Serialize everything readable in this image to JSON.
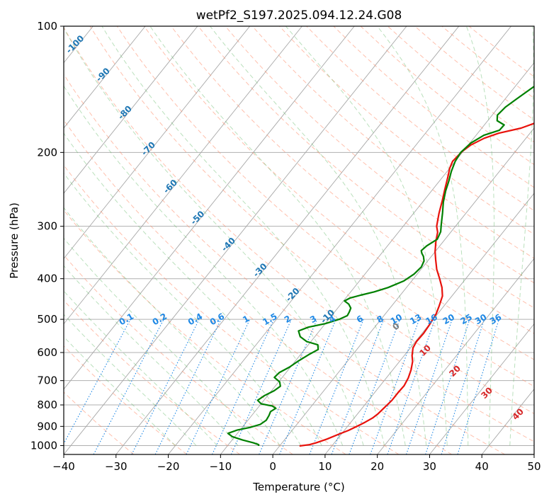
{
  "chart_data": {
    "type": "line",
    "title": "wetPf2_S197.2025.094.12.24.G08",
    "xlabel": "Temperature (°C)",
    "ylabel": "Pressure (hPa)",
    "xlim": [
      -40,
      50
    ],
    "ylim": [
      1050,
      100
    ],
    "y_scale": "log",
    "grid": true,
    "x_ticks": [
      "−40",
      "−30",
      "−20",
      "−10",
      "0",
      "10",
      "20",
      "30",
      "40",
      "50"
    ],
    "y_ticks": [
      "100",
      "200",
      "300",
      "400",
      "500",
      "600",
      "700",
      "800",
      "900",
      "1000"
    ],
    "series": [
      {
        "color": "#e8120c",
        "points": [
          [
            3.8,
            1002
          ],
          [
            5.5,
            995
          ],
          [
            6.5,
            985
          ],
          [
            8,
            965
          ],
          [
            9.5,
            940
          ],
          [
            10.8,
            920
          ],
          [
            11.8,
            900
          ],
          [
            12.7,
            880
          ],
          [
            13.5,
            860
          ],
          [
            13.9,
            840
          ],
          [
            14.2,
            810
          ],
          [
            14.5,
            780
          ],
          [
            14.5,
            750
          ],
          [
            14.6,
            720
          ],
          [
            14.2,
            690
          ],
          [
            13.5,
            660
          ],
          [
            12.5,
            630
          ],
          [
            11.5,
            610
          ],
          [
            10.5,
            585
          ],
          [
            10.2,
            565
          ],
          [
            10.3,
            540
          ],
          [
            10.1,
            515
          ],
          [
            9.7,
            485
          ],
          [
            9.1,
            465
          ],
          [
            8.2,
            440
          ],
          [
            6.8,
            420
          ],
          [
            5,
            400
          ],
          [
            3,
            380
          ],
          [
            1.3,
            360
          ],
          [
            0,
            345
          ],
          [
            -1.5,
            325
          ],
          [
            -2.5,
            310
          ],
          [
            -3.6,
            300
          ],
          [
            -5.1,
            280
          ],
          [
            -6.5,
            260
          ],
          [
            -7.7,
            245
          ],
          [
            -9,
            229
          ],
          [
            -10,
            218
          ],
          [
            -10.5,
            210
          ],
          [
            -10.2,
            199
          ],
          [
            -9.5,
            192
          ],
          [
            -8,
            185
          ],
          [
            -6,
            180
          ],
          [
            -2.5,
            175
          ],
          [
            -0.5,
            170
          ],
          [
            1,
            165
          ],
          [
            2.3,
            160
          ],
          [
            3.8,
            153
          ],
          [
            5,
            148
          ],
          [
            6.5,
            142
          ],
          [
            8,
            136
          ],
          [
            9.5,
            132
          ],
          [
            10.7,
            127
          ],
          [
            11.4,
            123
          ],
          [
            12.3,
            118
          ],
          [
            13.5,
            114
          ],
          [
            15,
            111
          ],
          [
            16.5,
            108
          ],
          [
            18.5,
            105
          ],
          [
            20,
            103
          ],
          [
            20.8,
            100
          ]
        ]
      },
      {
        "color": "#008000",
        "points": [
          [
            -4,
            1002
          ],
          [
            -4.2,
            995
          ],
          [
            -5.5,
            985
          ],
          [
            -8,
            970
          ],
          [
            -10.5,
            952
          ],
          [
            -11.8,
            935
          ],
          [
            -10.5,
            918
          ],
          [
            -8.5,
            905
          ],
          [
            -7,
            890
          ],
          [
            -6.5,
            870
          ],
          [
            -6.7,
            848
          ],
          [
            -7,
            830
          ],
          [
            -6.5,
            815
          ],
          [
            -7.5,
            805
          ],
          [
            -10,
            795
          ],
          [
            -11.2,
            780
          ],
          [
            -10.6,
            760
          ],
          [
            -9.5,
            740
          ],
          [
            -9,
            722
          ],
          [
            -9.8,
            705
          ],
          [
            -11.5,
            688
          ],
          [
            -11.3,
            670
          ],
          [
            -10.2,
            650
          ],
          [
            -9.5,
            630
          ],
          [
            -8.3,
            605
          ],
          [
            -7.4,
            590
          ],
          [
            -8.2,
            575
          ],
          [
            -10.8,
            565
          ],
          [
            -12.8,
            550
          ],
          [
            -14,
            533
          ],
          [
            -12.7,
            522
          ],
          [
            -10,
            512
          ],
          [
            -8,
            500
          ],
          [
            -7,
            490
          ],
          [
            -7.2,
            480
          ],
          [
            -7.5,
            470
          ],
          [
            -8.5,
            460
          ],
          [
            -9.8,
            452
          ],
          [
            -9.2,
            445
          ],
          [
            -7.6,
            438
          ],
          [
            -5.5,
            430
          ],
          [
            -3.5,
            420
          ],
          [
            -1.5,
            405
          ],
          [
            -0.6,
            390
          ],
          [
            -0.3,
            375
          ],
          [
            -0.7,
            363
          ],
          [
            -1.5,
            354
          ],
          [
            -2.3,
            348
          ],
          [
            -2.8,
            343
          ],
          [
            -2.5,
            334
          ],
          [
            -1.5,
            322
          ],
          [
            -2,
            309
          ],
          [
            -3,
            297
          ],
          [
            -4.5,
            279
          ],
          [
            -6,
            263
          ],
          [
            -7.3,
            247
          ],
          [
            -8.2,
            234
          ],
          [
            -9.2,
            222
          ],
          [
            -10,
            210
          ],
          [
            -10.3,
            200
          ],
          [
            -9.8,
            190
          ],
          [
            -8.5,
            182
          ],
          [
            -6.3,
            177
          ],
          [
            -6.2,
            172
          ],
          [
            -8.2,
            168
          ],
          [
            -9,
            163
          ],
          [
            -8.7,
            156
          ],
          [
            -7.8,
            149
          ],
          [
            -6.5,
            140
          ],
          [
            -4.5,
            128
          ],
          [
            -3.5,
            120
          ],
          [
            -2.2,
            112
          ],
          [
            -1.2,
            106
          ],
          [
            0,
            100
          ]
        ]
      }
    ],
    "dry_adiabats_label": [
      "-100",
      "-90",
      "-80",
      "-70",
      "-60",
      "-50",
      "-40",
      "-30",
      "-20",
      "-10"
    ],
    "mixing_ratio_labels": [
      "0.1",
      "0.2",
      "0.4",
      "0.6",
      "1",
      "1.5",
      "2",
      "3",
      "4",
      "6",
      "8",
      "10",
      "13",
      "16",
      "20",
      "25",
      "30",
      "36"
    ],
    "moist_adiabat_labels": [
      "0",
      "10",
      "20",
      "30",
      "40"
    ],
    "colors": {
      "temperature": "#e8120c",
      "dewpoint": "#008000",
      "dry_adiabat": "#ff8c69",
      "moist_adiabat": "#66bb6a",
      "mixing_ratio": "#1e88e5",
      "isotherm": "#808080",
      "iso_label": "#1f77b4",
      "moist_label": "#d62728"
    }
  }
}
